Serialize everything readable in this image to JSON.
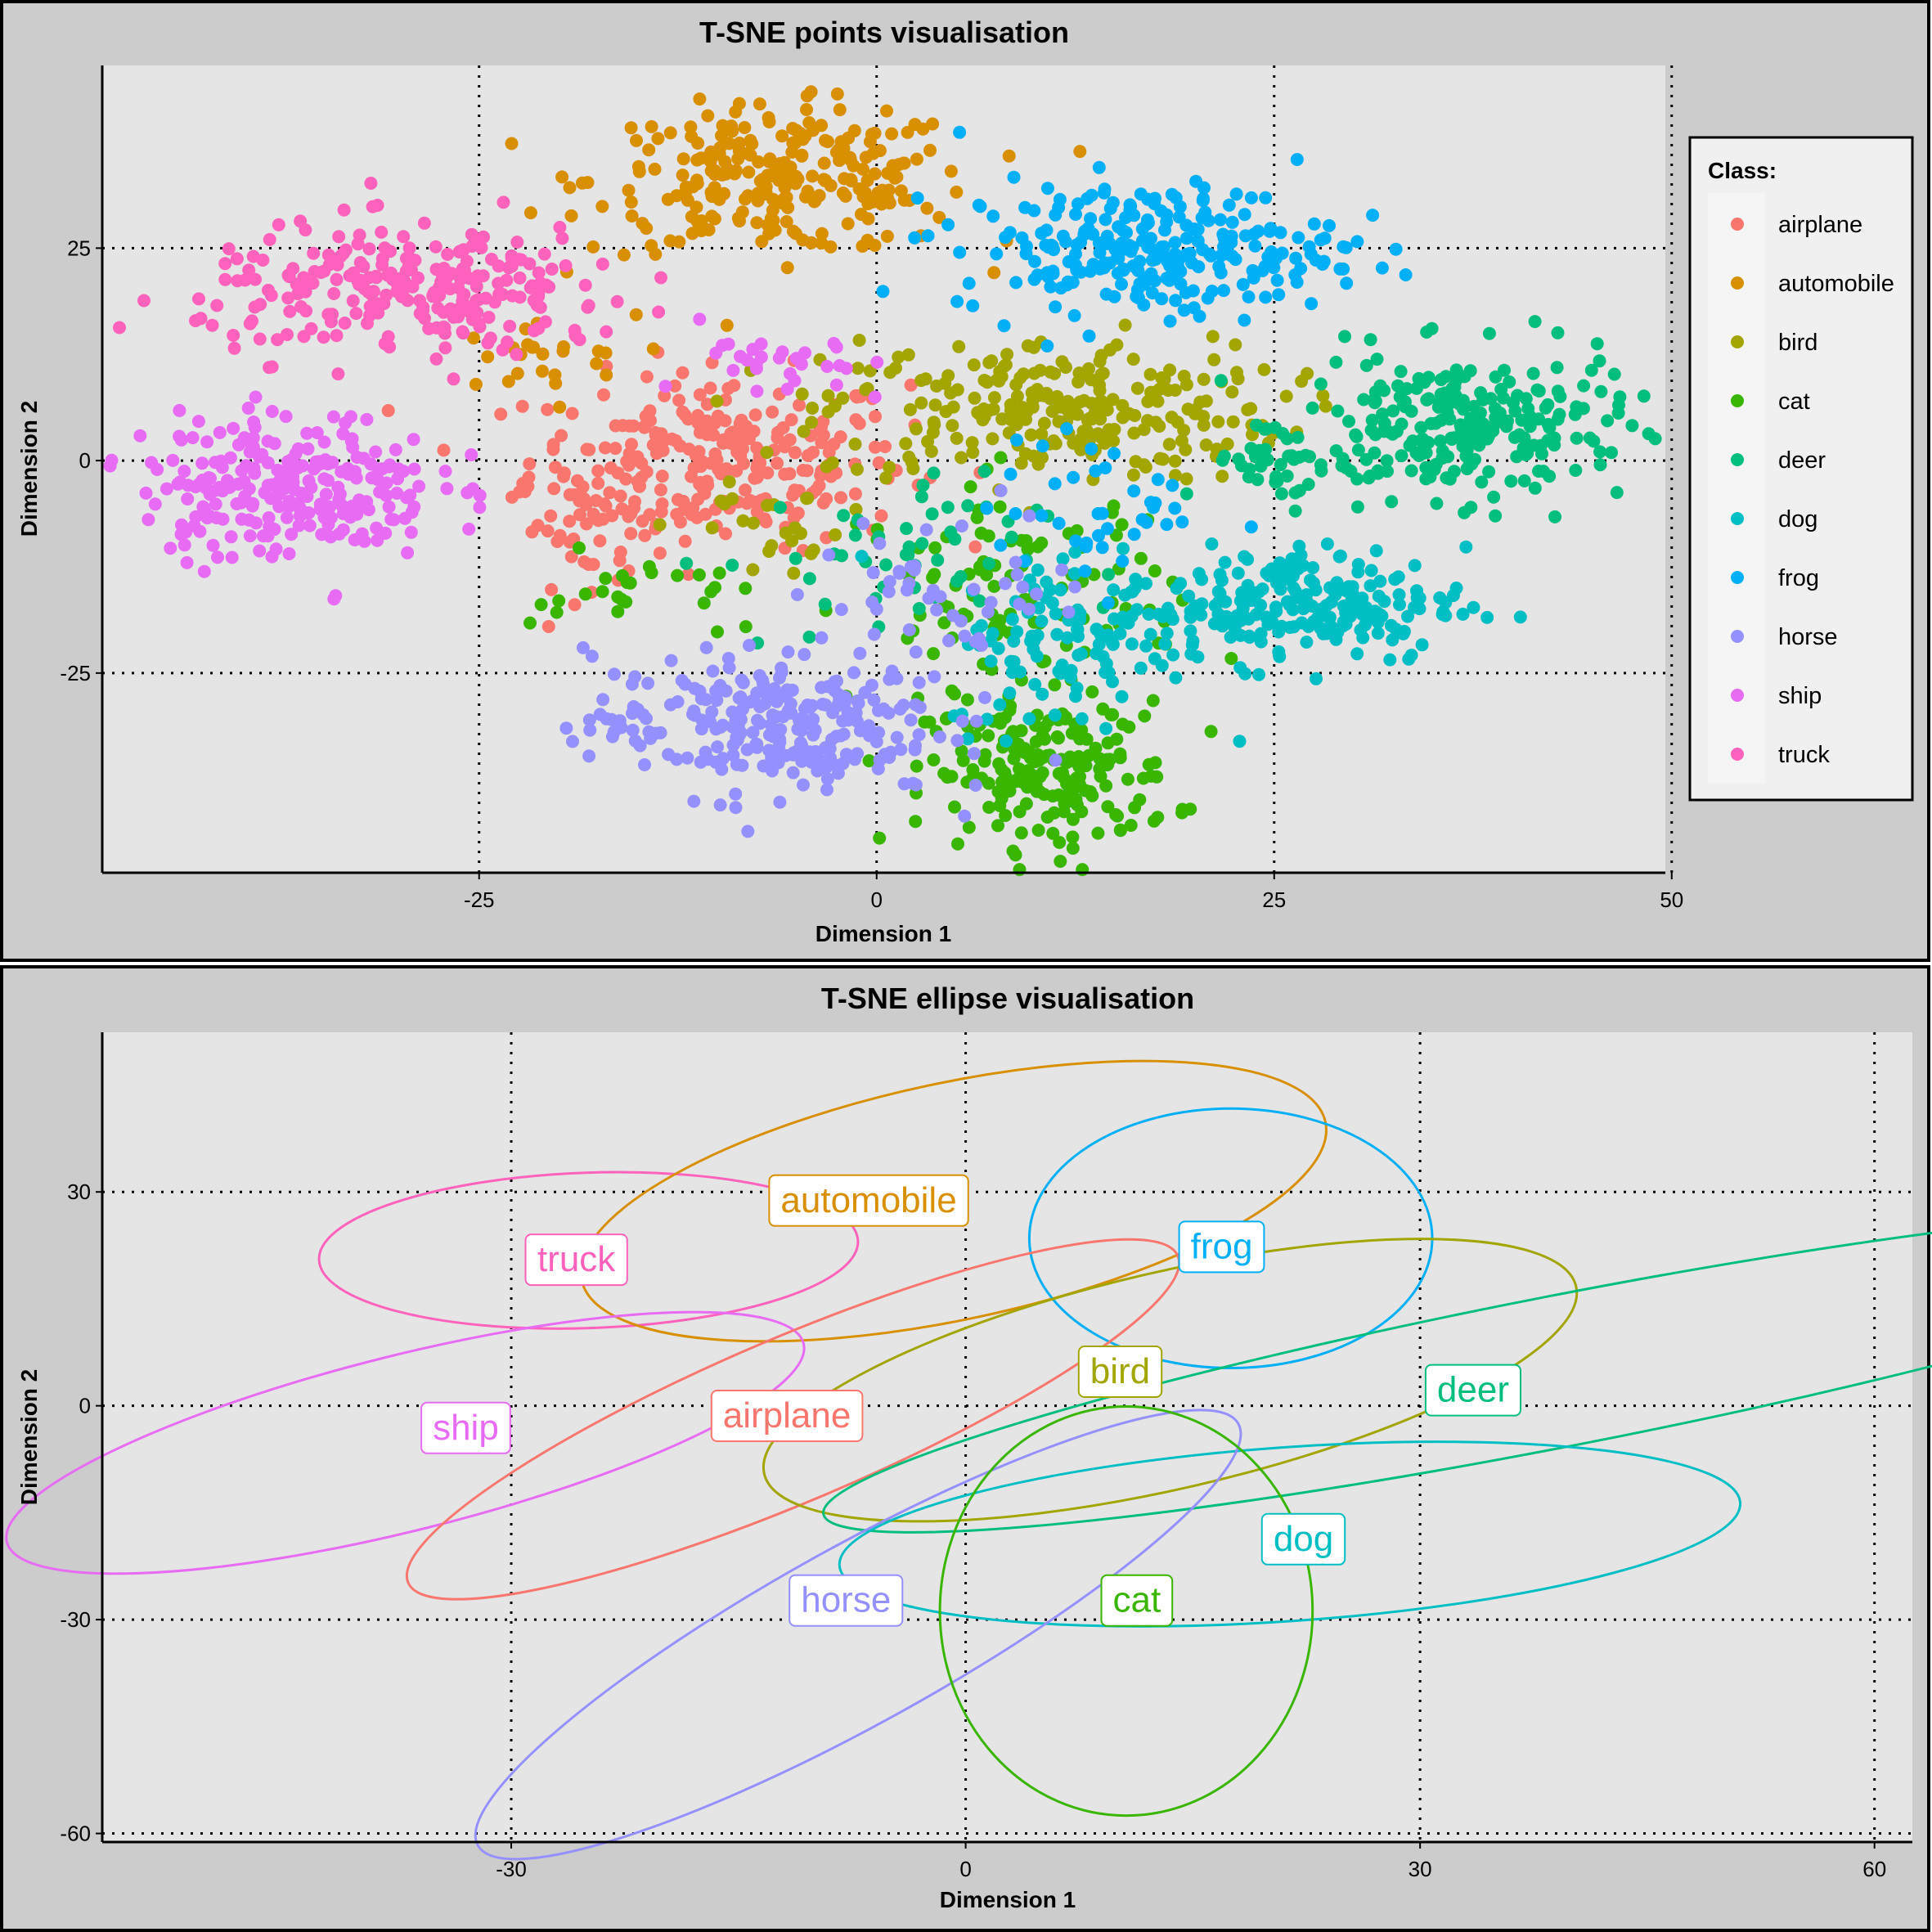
{
  "classes": [
    {
      "name": "airplane",
      "color": "#F8766D"
    },
    {
      "name": "automobile",
      "color": "#D89000"
    },
    {
      "name": "bird",
      "color": "#A3A500"
    },
    {
      "name": "cat",
      "color": "#39B600"
    },
    {
      "name": "deer",
      "color": "#00BF7D"
    },
    {
      "name": "dog",
      "color": "#00BFC4"
    },
    {
      "name": "frog",
      "color": "#00B0F6"
    },
    {
      "name": "horse",
      "color": "#9590FF"
    },
    {
      "name": "ship",
      "color": "#E76BF3"
    },
    {
      "name": "truck",
      "color": "#FF62BC"
    }
  ],
  "legend": {
    "title": "Class:"
  },
  "chart_data": [
    {
      "type": "scatter",
      "title": "T-SNE points visualisation",
      "xlabel": "Dimension 1",
      "ylabel": "Dimension 2",
      "xlim": [
        -48.7,
        49.6
      ],
      "ylim": [
        -48.5,
        46.5
      ],
      "xticks": [
        -25,
        0,
        25,
        50
      ],
      "yticks": [
        -25,
        0,
        25
      ],
      "grid": true,
      "legend_position": "right",
      "series": [
        {
          "name": "airplane",
          "clusters": [
            {
              "cx": -10,
              "cy": 0,
              "sx": 7,
              "sy": 6,
              "n": 260
            },
            {
              "cx": -18,
              "cy": -8,
              "sx": 3,
              "sy": 4,
              "n": 40
            }
          ]
        },
        {
          "name": "automobile",
          "clusters": [
            {
              "cx": -6,
              "cy": 33,
              "sx": 7,
              "sy": 5,
              "n": 260
            },
            {
              "cx": -22,
              "cy": 12,
              "sx": 4,
              "sy": 3,
              "n": 25
            }
          ]
        },
        {
          "name": "bird",
          "clusters": [
            {
              "cx": 11,
              "cy": 6,
              "sx": 8.5,
              "sy": 5,
              "n": 260
            },
            {
              "cx": -6,
              "cy": -8,
              "sx": 4,
              "sy": 4,
              "n": 25
            }
          ]
        },
        {
          "name": "cat",
          "clusters": [
            {
              "cx": 11,
              "cy": -37,
              "sx": 4.5,
              "sy": 5,
              "n": 200
            },
            {
              "cx": 9,
              "cy": -16,
              "sx": 6,
              "sy": 8,
              "n": 110
            },
            {
              "cx": -15,
              "cy": -16,
              "sx": 4,
              "sy": 3,
              "n": 25
            }
          ]
        },
        {
          "name": "deer",
          "clusters": [
            {
              "cx": 37,
              "cy": 4,
              "sx": 6,
              "sy": 5,
              "n": 240
            },
            {
              "cx": 26,
              "cy": 0,
              "sx": 3,
              "sy": 3,
              "n": 40
            },
            {
              "cx": 0,
              "cy": -12,
              "sx": 6,
              "sy": 6,
              "n": 50
            }
          ]
        },
        {
          "name": "dog",
          "clusters": [
            {
              "cx": 26,
              "cy": -17,
              "sx": 6.5,
              "sy": 4,
              "n": 230
            },
            {
              "cx": 12,
              "cy": -22,
              "sx": 4.5,
              "sy": 6,
              "n": 90
            }
          ]
        },
        {
          "name": "frog",
          "clusters": [
            {
              "cx": 17,
              "cy": 25,
              "sx": 7,
              "sy": 4.5,
              "n": 260
            },
            {
              "cx": 14,
              "cy": -6,
              "sx": 4,
              "sy": 5,
              "n": 40
            }
          ]
        },
        {
          "name": "horse",
          "clusters": [
            {
              "cx": -7,
              "cy": -31,
              "sx": 6.5,
              "sy": 5,
              "n": 260
            },
            {
              "cx": 5,
              "cy": -15,
              "sx": 5,
              "sy": 6,
              "n": 50
            }
          ]
        },
        {
          "name": "ship",
          "clusters": [
            {
              "cx": -37,
              "cy": -3,
              "sx": 5.5,
              "sy": 5,
              "n": 250
            },
            {
              "cx": -6,
              "cy": 11,
              "sx": 3,
              "sy": 3,
              "n": 30
            }
          ]
        },
        {
          "name": "truck",
          "clusters": [
            {
              "cx": -29,
              "cy": 20,
              "sx": 8,
              "sy": 4.5,
              "n": 260
            }
          ]
        }
      ]
    },
    {
      "type": "ellipse",
      "title": "T-SNE ellipse visualisation",
      "xlabel": "Dimension 1",
      "ylabel": "Dimension 2",
      "xlim": [
        -57,
        62.5
      ],
      "ylim": [
        -61.2,
        52.4
      ],
      "xticks": [
        -30,
        0,
        30,
        60
      ],
      "yticks": [
        30,
        0,
        -30,
        -60
      ],
      "grid": true,
      "series": [
        {
          "name": "truck",
          "cx": -24.9,
          "cy": 21.8,
          "rx": 17.8,
          "ry": 10.9,
          "angle": 2,
          "label_x": -25.7,
          "label_y": 20.6
        },
        {
          "name": "automobile",
          "cx": -0.8,
          "cy": 28.7,
          "rx": 25.1,
          "ry": 16.6,
          "angle": 12,
          "label_x": -6.4,
          "label_y": 28.9
        },
        {
          "name": "frog",
          "cx": 17.5,
          "cy": 23.5,
          "rx": 13.3,
          "ry": 18.2,
          "angle": 0,
          "label_x": 16.9,
          "label_y": 22.4
        },
        {
          "name": "ship",
          "cx": -37.0,
          "cy": -5.2,
          "rx": 27.1,
          "ry": 12.3,
          "angle": 14,
          "label_x": -33.0,
          "label_y": -3.0
        },
        {
          "name": "airplane",
          "cx": -11.4,
          "cy": -1.9,
          "rx": 27.6,
          "ry": 11.5,
          "angle": 23,
          "label_x": -11.8,
          "label_y": -1.3
        },
        {
          "name": "bird",
          "cx": 13.5,
          "cy": 3.6,
          "rx": 27.5,
          "ry": 15.2,
          "angle": 13,
          "label_x": 10.2,
          "label_y": 4.9
        },
        {
          "name": "deer",
          "cx": 39.3,
          "cy": 4.9,
          "rx": 49.6,
          "ry": 10.6,
          "angle": 11,
          "label_x": 33.5,
          "label_y": 2.3
        },
        {
          "name": "dog",
          "cx": 21.4,
          "cy": -18.0,
          "rx": 29.8,
          "ry": 12.2,
          "angle": 4,
          "label_x": 22.3,
          "label_y": -18.6
        },
        {
          "name": "horse",
          "cx": -7.1,
          "cy": -32.1,
          "rx": 28.7,
          "ry": 12.4,
          "angle": 29,
          "label_x": -7.9,
          "label_y": -27.2
        },
        {
          "name": "cat",
          "cx": 10.6,
          "cy": -28.8,
          "rx": 12.3,
          "ry": 28.7,
          "angle": 0,
          "label_x": 11.3,
          "label_y": -27.2
        }
      ]
    }
  ]
}
